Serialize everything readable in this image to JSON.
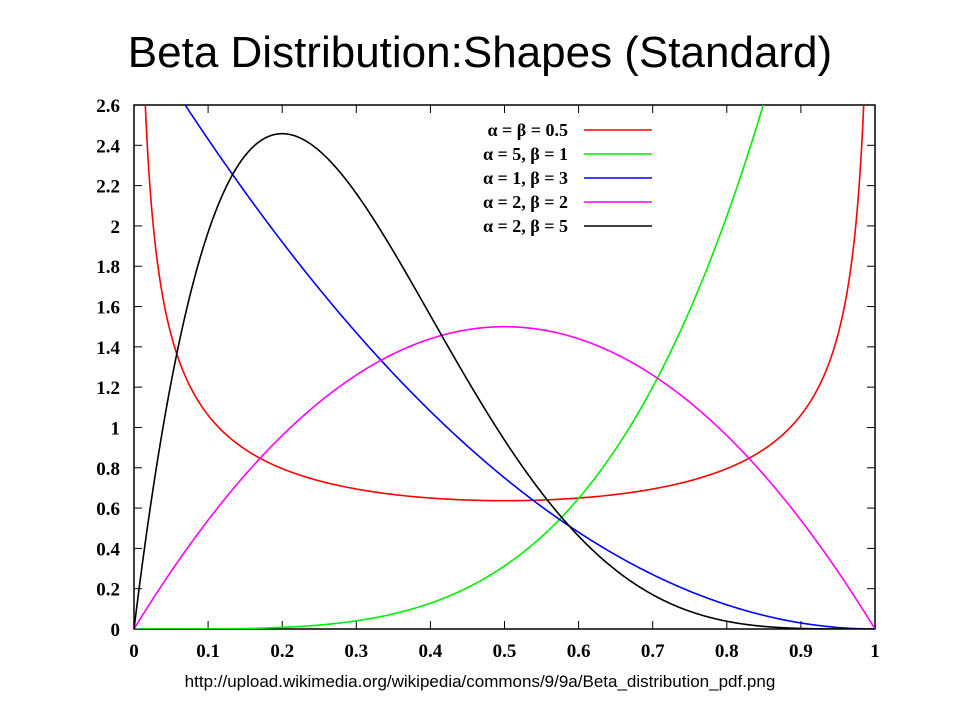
{
  "slide": {
    "title": "Beta Distribution:Shapes (Standard)",
    "source": "http://upload.wikimedia.org/wikipedia/commons/9/9a/Beta_distribution_pdf.png"
  },
  "chart_data": {
    "type": "line",
    "title": "",
    "xlabel": "",
    "ylabel": "",
    "xlim": [
      0,
      1
    ],
    "ylim": [
      0,
      2.6
    ],
    "x_ticks": [
      "0",
      "0.1",
      "0.2",
      "0.3",
      "0.4",
      "0.5",
      "0.6",
      "0.7",
      "0.8",
      "0.9",
      "1"
    ],
    "y_ticks": [
      "0",
      "0.2",
      "0.4",
      "0.6",
      "0.8",
      "1",
      "1.2",
      "1.4",
      "1.6",
      "1.8",
      "2",
      "2.2",
      "2.4",
      "2.6"
    ],
    "grid": false,
    "legend_position": "top-right",
    "series": [
      {
        "name": "α = β = 0.5",
        "alpha": 0.5,
        "beta": 0.5,
        "color": "#ff0000"
      },
      {
        "name": "α = 5, β = 1",
        "alpha": 5,
        "beta": 1,
        "color": "#00ee00"
      },
      {
        "name": "α = 1, β = 3",
        "alpha": 1,
        "beta": 3,
        "color": "#0000ff"
      },
      {
        "name": "α = 2, β = 2",
        "alpha": 2,
        "beta": 2,
        "color": "#ff00ff"
      },
      {
        "name": "α = 2, β = 5",
        "alpha": 2,
        "beta": 5,
        "color": "#000000"
      }
    ]
  }
}
